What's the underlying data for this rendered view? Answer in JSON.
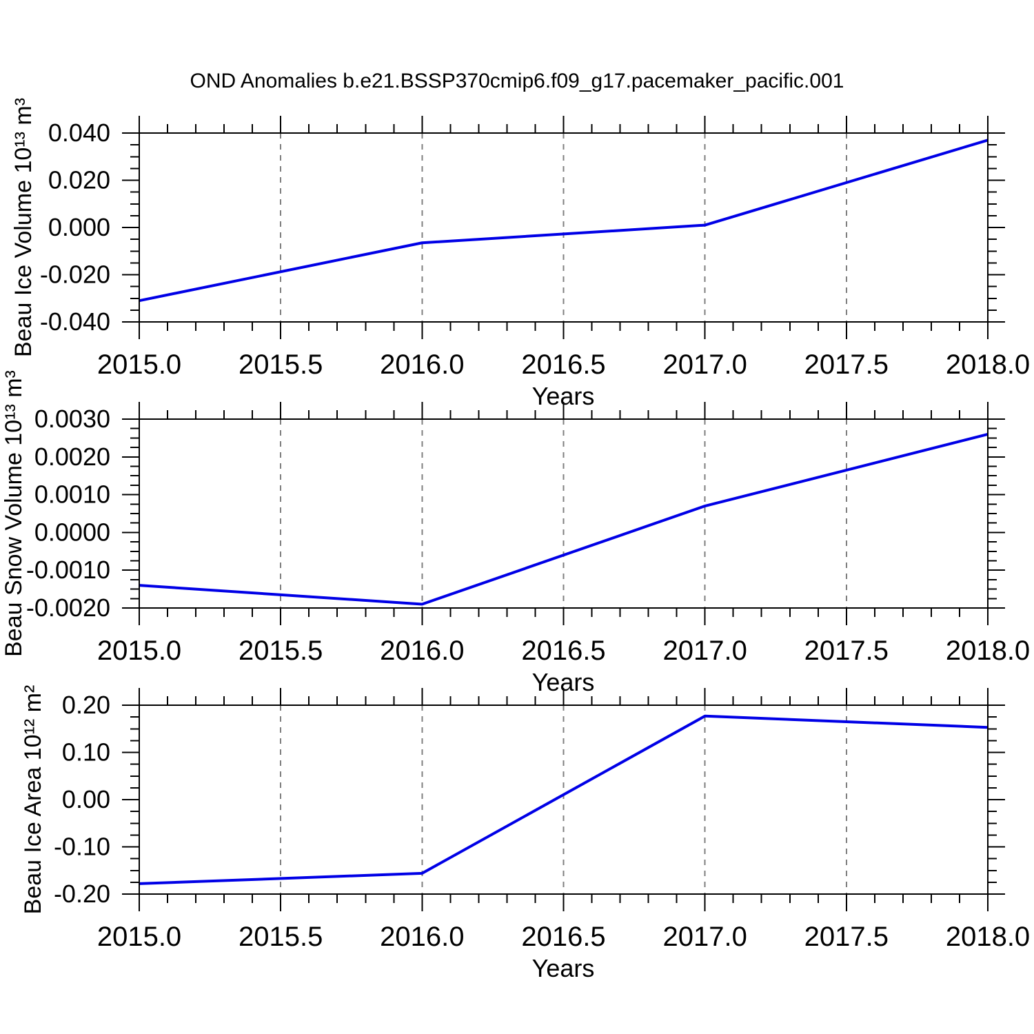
{
  "title": "OND Anomalies b.e21.BSSP370cmip6.f09_g17.pacemaker_pacific.001",
  "colors": {
    "frame": "#000000",
    "grid": "#7f7f7f",
    "text": "#000000"
  },
  "chart_data": [
    {
      "type": "line",
      "title": "",
      "ylabel": "Beau Ice Volume 10¹³ m³",
      "xlabel": "Years",
      "x": [
        2015.0,
        2016.0,
        2017.0,
        2018.0
      ],
      "values": [
        -0.031,
        -0.0065,
        0.001,
        0.037
      ],
      "xlim": [
        2015.0,
        2018.0
      ],
      "ylim": [
        -0.04,
        0.04
      ],
      "xticks": [
        2015.0,
        2015.5,
        2016.0,
        2016.5,
        2017.0,
        2017.5,
        2018.0
      ],
      "xtick_labels": [
        "2015.0",
        "2015.5",
        "2016.0",
        "2016.5",
        "2017.0",
        "2017.5",
        "2018.0"
      ],
      "yticks": [
        -0.04,
        -0.02,
        0.0,
        0.02,
        0.04
      ],
      "ytick_labels": [
        "-0.040",
        "-0.020",
        "0.000",
        "0.020",
        "0.040"
      ],
      "x_minor_step": 0.1,
      "y_minor_step": 0.005,
      "gridlines_x": [
        2015.5,
        2016.0,
        2016.5,
        2017.0,
        2017.5
      ],
      "grid_on": true,
      "legend": "none",
      "line_color": "#0000e6"
    },
    {
      "type": "line",
      "title": "",
      "ylabel": "Beau Snow Volume 10¹³ m³",
      "xlabel": "Years",
      "x": [
        2015.0,
        2016.0,
        2017.0,
        2018.0
      ],
      "values": [
        -0.0014,
        -0.0019,
        0.0007,
        0.0026
      ],
      "xlim": [
        2015.0,
        2018.0
      ],
      "ylim": [
        -0.002,
        0.003
      ],
      "xticks": [
        2015.0,
        2015.5,
        2016.0,
        2016.5,
        2017.0,
        2017.5,
        2018.0
      ],
      "xtick_labels": [
        "2015.0",
        "2015.5",
        "2016.0",
        "2016.5",
        "2017.0",
        "2017.5",
        "2018.0"
      ],
      "yticks": [
        -0.002,
        -0.001,
        0.0,
        0.001,
        0.002,
        0.003
      ],
      "ytick_labels": [
        "-0.0020",
        "-0.0010",
        "0.0000",
        "0.0010",
        "0.0020",
        "0.0030"
      ],
      "x_minor_step": 0.1,
      "y_minor_step": 0.00025,
      "gridlines_x": [
        2015.5,
        2016.0,
        2016.5,
        2017.0,
        2017.5
      ],
      "grid_on": true,
      "legend": "none",
      "line_color": "#0000e6"
    },
    {
      "type": "line",
      "title": "",
      "ylabel": "Beau Ice Area 10¹² m²",
      "xlabel": "Years",
      "x": [
        2015.0,
        2016.0,
        2017.0,
        2018.0
      ],
      "values": [
        -0.178,
        -0.156,
        0.177,
        0.153
      ],
      "xlim": [
        2015.0,
        2018.0
      ],
      "ylim": [
        -0.2,
        0.2
      ],
      "xticks": [
        2015.0,
        2015.5,
        2016.0,
        2016.5,
        2017.0,
        2017.5,
        2018.0
      ],
      "xtick_labels": [
        "2015.0",
        "2015.5",
        "2016.0",
        "2016.5",
        "2017.0",
        "2017.5",
        "2018.0"
      ],
      "yticks": [
        -0.2,
        -0.1,
        0.0,
        0.1,
        0.2
      ],
      "ytick_labels": [
        "-0.20",
        "-0.10",
        "0.00",
        "0.10",
        "0.20"
      ],
      "x_minor_step": 0.1,
      "y_minor_step": 0.025,
      "gridlines_x": [
        2015.5,
        2016.0,
        2016.5,
        2017.0,
        2017.5
      ],
      "grid_on": true,
      "legend": "none",
      "line_color": "#0000e6"
    }
  ]
}
